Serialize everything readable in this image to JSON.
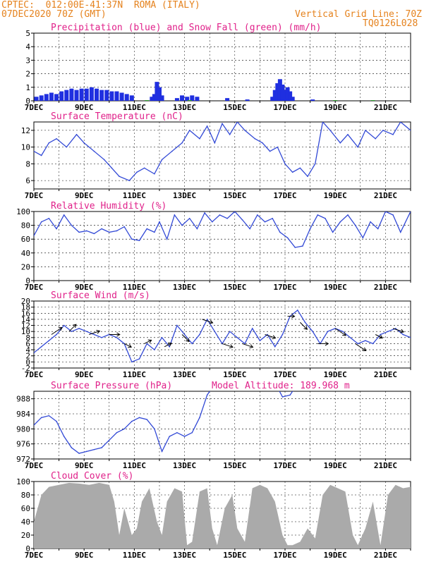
{
  "header": {
    "line1": "CPTEC:  012:00E-41:37N  ROMA (ITALY)",
    "line2": "07DEC2020 70Z (GMT)",
    "grid_note": "Vertical Grid Line: 70Z",
    "code": "TQ0126L028"
  },
  "colors": {
    "header": "#e5821d",
    "title": "#e0218a",
    "precip": "#1f2fe0",
    "snow": "#2aa02a",
    "line": "#3249d6",
    "cloud": "#aaaaaa",
    "arrow": "#000000"
  },
  "x_axis": {
    "first_label": "7DEC",
    "labels": [
      "9DEC",
      "11DEC",
      "13DEC",
      "15DEC",
      "17DEC",
      "19DEC",
      "21DEC"
    ],
    "day_range": [
      7.0,
      22.0
    ]
  },
  "chart_data": [
    {
      "id": "precip",
      "type": "bar",
      "title": "Precipitation (blue) and Snow Fall (green) (mm/h)",
      "ylim": [
        0,
        5
      ],
      "yticks": [
        0,
        1,
        2,
        3,
        4,
        5
      ],
      "grid": true,
      "series": [
        {
          "name": "Precipitation",
          "color": "#1f2fe0",
          "x": [
            7.1,
            7.3,
            7.5,
            7.7,
            7.9,
            8.1,
            8.3,
            8.5,
            8.7,
            8.9,
            9.1,
            9.3,
            9.5,
            9.7,
            9.9,
            10.1,
            10.3,
            10.5,
            10.7,
            10.9,
            11.7,
            11.8,
            11.9,
            12.0,
            12.1,
            12.7,
            12.9,
            13.1,
            13.3,
            13.5,
            14.7,
            15.5,
            16.5,
            16.6,
            16.7,
            16.8,
            16.9,
            17.0,
            17.1,
            17.2,
            17.3,
            18.1
          ],
          "values": [
            0.3,
            0.4,
            0.5,
            0.6,
            0.5,
            0.7,
            0.8,
            0.9,
            0.8,
            0.9,
            0.9,
            1.0,
            0.9,
            0.8,
            0.8,
            0.7,
            0.7,
            0.6,
            0.5,
            0.4,
            0.3,
            0.5,
            1.4,
            1.0,
            0.4,
            0.2,
            0.4,
            0.3,
            0.4,
            0.3,
            0.2,
            0.1,
            0.3,
            0.8,
            1.3,
            1.6,
            1.2,
            0.8,
            1.0,
            0.7,
            0.3,
            0.1
          ]
        },
        {
          "name": "Snow Fall",
          "color": "#2aa02a",
          "x": [
            11.5,
            13.2,
            19.0,
            20.5
          ],
          "values": [
            0.05,
            0.05,
            0.05,
            0.05
          ]
        }
      ]
    },
    {
      "id": "temp",
      "type": "line",
      "title": "Surface Temperature (nC)",
      "ylim": [
        5,
        13
      ],
      "yticks": [
        6,
        8,
        10,
        12
      ],
      "grid": true,
      "x": [
        7.0,
        7.3,
        7.6,
        7.9,
        8.3,
        8.7,
        9.0,
        9.4,
        9.8,
        10.1,
        10.4,
        10.8,
        11.1,
        11.4,
        11.8,
        12.1,
        12.5,
        12.9,
        13.2,
        13.6,
        13.9,
        14.2,
        14.5,
        14.8,
        15.1,
        15.4,
        15.8,
        16.1,
        16.4,
        16.7,
        17.0,
        17.3,
        17.6,
        17.9,
        18.2,
        18.5,
        18.8,
        19.2,
        19.5,
        19.9,
        20.2,
        20.6,
        20.9,
        21.3,
        21.6,
        22.0
      ],
      "y": [
        9.5,
        9.0,
        10.5,
        11.0,
        10.0,
        11.5,
        10.5,
        9.5,
        8.5,
        7.5,
        6.5,
        6.0,
        7.0,
        7.5,
        6.8,
        8.5,
        9.5,
        10.5,
        12.0,
        11.0,
        12.5,
        10.5,
        12.8,
        11.5,
        13.0,
        12.0,
        11.0,
        10.5,
        9.5,
        10.0,
        8.0,
        7.0,
        7.5,
        6.5,
        8.0,
        13.0,
        12.0,
        10.5,
        11.5,
        10.0,
        12.0,
        11.0,
        12.0,
        11.5,
        13.0,
        12.0
      ]
    },
    {
      "id": "rh",
      "type": "line",
      "title": "Relative Humidity (%)",
      "ylim": [
        0,
        100
      ],
      "yticks": [
        0,
        20,
        40,
        60,
        80,
        100
      ],
      "grid": true,
      "x": [
        7.0,
        7.3,
        7.6,
        7.9,
        8.2,
        8.5,
        8.8,
        9.1,
        9.4,
        9.7,
        10.0,
        10.3,
        10.6,
        10.9,
        11.2,
        11.5,
        11.8,
        12.0,
        12.3,
        12.6,
        12.9,
        13.2,
        13.5,
        13.8,
        14.1,
        14.4,
        14.7,
        15.0,
        15.3,
        15.6,
        15.9,
        16.2,
        16.5,
        16.8,
        17.1,
        17.4,
        17.7,
        18.0,
        18.3,
        18.6,
        18.9,
        19.2,
        19.5,
        19.8,
        20.1,
        20.4,
        20.7,
        21.0,
        21.3,
        21.6,
        22.0
      ],
      "y": [
        65,
        85,
        90,
        75,
        95,
        80,
        70,
        72,
        68,
        75,
        70,
        72,
        78,
        60,
        58,
        75,
        70,
        85,
        60,
        95,
        80,
        90,
        75,
        98,
        85,
        95,
        90,
        100,
        88,
        75,
        95,
        85,
        90,
        70,
        62,
        48,
        50,
        75,
        95,
        90,
        70,
        85,
        95,
        80,
        62,
        85,
        75,
        100,
        95,
        70,
        100
      ]
    },
    {
      "id": "wind",
      "type": "line",
      "title": "Surface Wind (m/s)",
      "ylim": [
        -2,
        20
      ],
      "yticks": [
        -2,
        0,
        2,
        4,
        6,
        8,
        10,
        12,
        14,
        16,
        18,
        20
      ],
      "grid": true,
      "x": [
        7.0,
        7.3,
        7.6,
        7.9,
        8.2,
        8.5,
        8.8,
        9.1,
        9.4,
        9.7,
        10.0,
        10.3,
        10.6,
        10.9,
        11.2,
        11.5,
        11.8,
        12.1,
        12.4,
        12.7,
        13.0,
        13.3,
        13.6,
        13.9,
        14.2,
        14.5,
        14.8,
        15.1,
        15.4,
        15.7,
        16.0,
        16.3,
        16.6,
        16.9,
        17.2,
        17.5,
        17.8,
        18.1,
        18.4,
        18.7,
        19.0,
        19.3,
        19.6,
        19.9,
        20.2,
        20.5,
        20.8,
        21.1,
        21.4,
        21.7,
        22.0
      ],
      "y": [
        3,
        5,
        7,
        9,
        12,
        10,
        11,
        10,
        9,
        8,
        9,
        8,
        6,
        0,
        1,
        6,
        4,
        8,
        5,
        12,
        9,
        6,
        9,
        14,
        10,
        6,
        10,
        8,
        6,
        11,
        7,
        9,
        5,
        9,
        15,
        17,
        13,
        10,
        6,
        10,
        11,
        10,
        8,
        6,
        7,
        6,
        9,
        10,
        11,
        9,
        8
      ],
      "barbs": [
        {
          "x": 7.7,
          "u": 3,
          "v": 2
        },
        {
          "x": 8.4,
          "u": 2,
          "v": 2
        },
        {
          "x": 9.2,
          "u": 3,
          "v": 1
        },
        {
          "x": 10.0,
          "u": 3,
          "v": 0
        },
        {
          "x": 10.6,
          "u": 2,
          "v": -1
        },
        {
          "x": 11.4,
          "u": 2,
          "v": 1
        },
        {
          "x": 12.2,
          "u": 2,
          "v": 1
        },
        {
          "x": 12.9,
          "u": 2,
          "v": -2
        },
        {
          "x": 13.7,
          "u": 3,
          "v": -1
        },
        {
          "x": 14.5,
          "u": 3,
          "v": -1
        },
        {
          "x": 15.3,
          "u": 3,
          "v": -1
        },
        {
          "x": 16.2,
          "u": 3,
          "v": -1
        },
        {
          "x": 17.1,
          "u": 2,
          "v": 0
        },
        {
          "x": 17.6,
          "u": 2,
          "v": -2
        },
        {
          "x": 18.3,
          "u": 3,
          "v": 0
        },
        {
          "x": 19.0,
          "u": 3,
          "v": -2
        },
        {
          "x": 19.8,
          "u": 3,
          "v": -2
        },
        {
          "x": 20.6,
          "u": 2,
          "v": -1
        },
        {
          "x": 21.3,
          "u": 3,
          "v": -1
        }
      ]
    },
    {
      "id": "pressure",
      "type": "line",
      "title": "Surface Pressure (hPa)",
      "subtitle": "Model Altitude: 189.968 m",
      "ylim": [
        972,
        990
      ],
      "yticks": [
        972,
        976,
        980,
        984,
        988
      ],
      "grid": true,
      "x": [
        7.0,
        7.3,
        7.6,
        7.9,
        8.2,
        8.5,
        8.8,
        9.1,
        9.4,
        9.7,
        10.0,
        10.3,
        10.6,
        10.9,
        11.2,
        11.5,
        11.8,
        12.1,
        12.4,
        12.7,
        13.0,
        13.3,
        13.6,
        13.9,
        14.2,
        16.7,
        16.9,
        17.2,
        17.4
      ],
      "y": [
        981,
        983,
        983.5,
        982,
        978,
        975,
        973.5,
        974,
        974.5,
        975,
        977,
        979,
        980,
        982,
        983,
        982.5,
        980,
        974,
        978,
        979,
        978,
        979,
        983,
        989,
        992,
        991,
        988.5,
        989,
        991
      ]
    },
    {
      "id": "cloud",
      "type": "area",
      "title": "Cloud Cover (%)",
      "ylim": [
        0,
        100
      ],
      "yticks": [
        0,
        20,
        40,
        60,
        80,
        100
      ],
      "grid": true,
      "x": [
        7.0,
        7.3,
        7.6,
        8.0,
        8.4,
        8.8,
        9.2,
        9.6,
        10.0,
        10.2,
        10.4,
        10.6,
        10.9,
        11.1,
        11.3,
        11.6,
        11.9,
        12.1,
        12.3,
        12.6,
        12.9,
        13.1,
        13.3,
        13.6,
        13.9,
        14.1,
        14.3,
        14.6,
        14.9,
        15.1,
        15.4,
        15.7,
        16.0,
        16.3,
        16.6,
        16.9,
        17.1,
        17.3,
        17.6,
        17.9,
        18.2,
        18.5,
        18.8,
        19.1,
        19.4,
        19.7,
        19.9,
        20.2,
        20.5,
        20.8,
        21.1,
        21.4,
        21.7,
        22.0
      ],
      "y": [
        40,
        80,
        92,
        95,
        98,
        97,
        95,
        98,
        95,
        70,
        20,
        60,
        20,
        30,
        70,
        90,
        40,
        20,
        70,
        90,
        85,
        5,
        10,
        85,
        90,
        30,
        5,
        60,
        80,
        30,
        10,
        90,
        95,
        90,
        70,
        20,
        5,
        5,
        10,
        30,
        15,
        80,
        95,
        90,
        85,
        20,
        5,
        30,
        70,
        5,
        80,
        95,
        90,
        92
      ]
    }
  ]
}
